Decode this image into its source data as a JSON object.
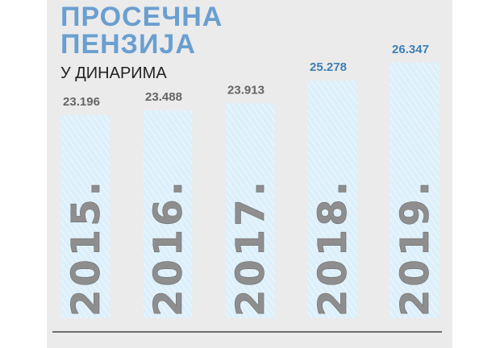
{
  "chart_data": {
    "type": "bar",
    "title": [
      "ПРОСЕЧНА",
      "ПЕНЗИЈА"
    ],
    "subtitle": "У ДИНАРИМА",
    "categories": [
      "2015.",
      "2016.",
      "2017.",
      "2018.",
      "2019."
    ],
    "values": [
      23196,
      23488,
      23913,
      25278,
      26347
    ],
    "value_labels": [
      "23.196",
      "23.488",
      "23.913",
      "25.278",
      "26.347"
    ],
    "value_label_colors": [
      "#666666",
      "#666666",
      "#666666",
      "#3f7fb6",
      "#3f7fb6"
    ],
    "color": "#dceffa",
    "ylim": [
      11000,
      27000
    ]
  }
}
